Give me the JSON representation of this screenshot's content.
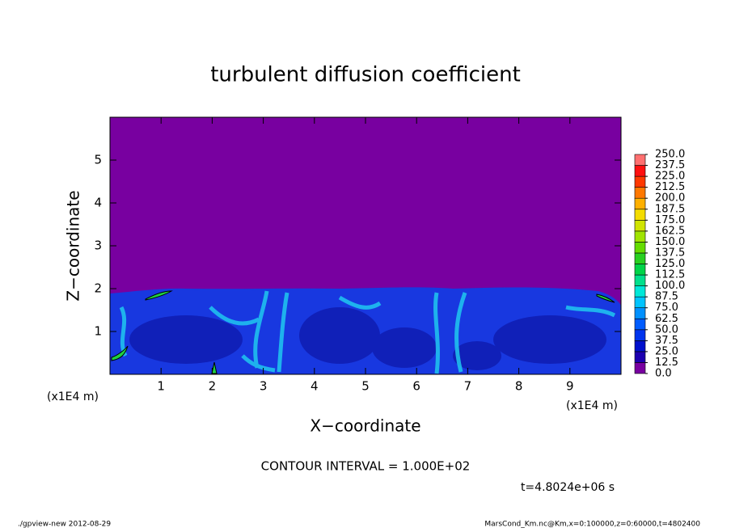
{
  "chart_data": {
    "type": "contour",
    "title": "turbulent diffusion coefficient",
    "xlabel": "X−coordinate",
    "ylabel": "Z−coordinate",
    "x_unit_label_left": "(x1E4 m)",
    "x_unit_label_right": "(x1E4 m)",
    "xlim": [
      0,
      10
    ],
    "xticks": [
      1,
      2,
      3,
      4,
      5,
      6,
      7,
      8,
      9
    ],
    "ylim": [
      0,
      6
    ],
    "yticks": [
      1,
      2,
      3,
      4,
      5
    ],
    "contour_note": "CONTOUR INTERVAL = 1.000E+02",
    "time_note": "t=4.8024e+06 s",
    "footer_left": "./gpview-new  2012-08-29",
    "footer_right": "MarsCond_Km.nc@Km,x=0:100000,z=0:60000,t=4802400",
    "colorbar": {
      "levels": [
        {
          "value": 0,
          "label": "0.0"
        },
        {
          "value": 12.5,
          "label": "12.5"
        },
        {
          "value": 25,
          "label": "25.0"
        },
        {
          "value": 37.5,
          "label": "37.5"
        },
        {
          "value": 50,
          "label": "50.0"
        },
        {
          "value": 62.5,
          "label": "62.5"
        },
        {
          "value": 75,
          "label": "75.0"
        },
        {
          "value": 87.5,
          "label": "87.5"
        },
        {
          "value": 100,
          "label": "100.0"
        },
        {
          "value": 112.5,
          "label": "112.5"
        },
        {
          "value": 125,
          "label": "125.0"
        },
        {
          "value": 137.5,
          "label": "137.5"
        },
        {
          "value": 150,
          "label": "150.0"
        },
        {
          "value": 162.5,
          "label": "162.5"
        },
        {
          "value": 175,
          "label": "175.0"
        },
        {
          "value": 187.5,
          "label": "187.5"
        },
        {
          "value": 200,
          "label": "200.0"
        },
        {
          "value": 212.5,
          "label": "212.5"
        },
        {
          "value": 225,
          "label": "225.0"
        },
        {
          "value": 237.5,
          "label": "237.5"
        },
        {
          "value": 250,
          "label": "250.0"
        }
      ],
      "colors": [
        "#7800a0",
        "#1c00b0",
        "#0010cc",
        "#0034ee",
        "#005cff",
        "#0090ff",
        "#00c4ff",
        "#00e8d8",
        "#00e08c",
        "#00d448",
        "#28d020",
        "#64dc00",
        "#a0e400",
        "#d0e400",
        "#f4dc00",
        "#ffb000",
        "#ff7800",
        "#ff3800",
        "#ff1010",
        "#ff7070"
      ]
    }
  }
}
